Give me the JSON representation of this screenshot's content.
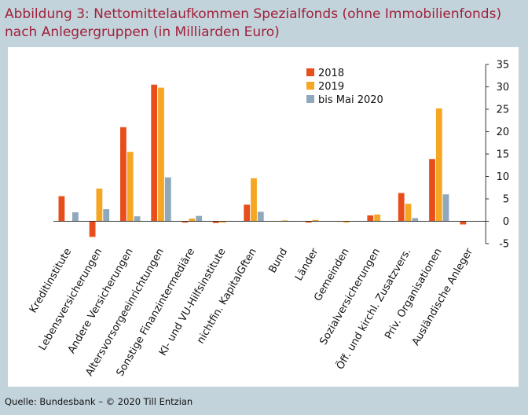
{
  "title_line1": "Abbildung 3: Nettomittelaufkommen Spezialfonds (ohne Immobilienfonds)",
  "title_line2": "nach Anlegergruppen (in Milliarden Euro)",
  "source": "Quelle: Bundesbank – © 2020 Till Entzian",
  "chart_data": {
    "type": "bar",
    "categories": [
      "Kreditinstitute",
      "Lebensversicherungen",
      "Andere Versicherungen",
      "Altersvorsorgeeinrichtungen",
      "Sonstige Finanzintermediäre",
      "KI- und VU-Hilfsinstitute",
      "nichtfin. KapitalGften",
      "Bund",
      "Länder",
      "Gemeinden",
      "Sozialversicherungen",
      "Öff. und kirchl. Zusatzvers.",
      "Priv. Organisationen",
      "Ausländische Anleger"
    ],
    "series": [
      {
        "name": "2018",
        "color": "#e84e1b",
        "values": [
          5.6,
          -3.5,
          21.0,
          30.5,
          -0.3,
          -0.4,
          3.7,
          0.0,
          -0.3,
          -0.1,
          1.3,
          6.3,
          13.9,
          -0.7
        ]
      },
      {
        "name": "2019",
        "color": "#f5a623",
        "values": [
          0.0,
          7.3,
          15.5,
          29.8,
          0.6,
          -0.3,
          9.6,
          0.2,
          0.3,
          -0.3,
          1.5,
          3.9,
          25.2,
          0.0
        ]
      },
      {
        "name": "bis Mai 2020",
        "color": "#8fa9bc",
        "values": [
          2.0,
          2.7,
          1.1,
          9.8,
          1.2,
          0.0,
          2.1,
          0.0,
          0.0,
          0.0,
          0.0,
          0.7,
          6.0,
          0.0
        ]
      }
    ],
    "ylim": [
      -5,
      35
    ],
    "yticks": [
      -5,
      0,
      5,
      10,
      15,
      20,
      25,
      30,
      35
    ],
    "axis_side": "right",
    "legend_position": "top-center",
    "grid": false
  }
}
